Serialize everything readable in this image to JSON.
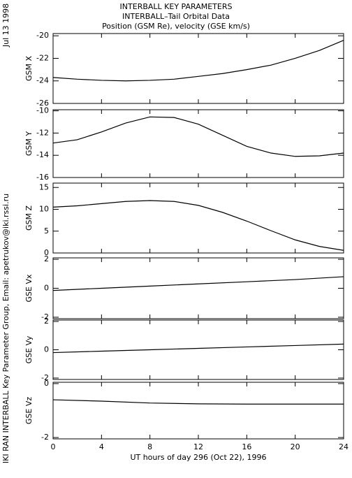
{
  "header": {
    "date": "Jul 13 1998",
    "credit": "IKI RAN INTERBALL Key Parameter Group, Email: apetrukov@iki.rssi.ru",
    "titles": [
      "INTERBALL KEY PARAMETERS",
      "INTERBALL–Tail Orbital Data",
      "Position (GSM Re), velocity (GSE km/s)"
    ]
  },
  "chart_data": [
    {
      "type": "line",
      "ylabel": "GSM X",
      "color": "#000000",
      "x": [
        0,
        2,
        4,
        6,
        8,
        10,
        12,
        14,
        16,
        18,
        20,
        22,
        24
      ],
      "values": [
        -23.7,
        -23.85,
        -23.95,
        -24.0,
        -23.95,
        -23.85,
        -23.6,
        -23.35,
        -23.0,
        -22.6,
        -22.0,
        -21.3,
        -20.4
      ],
      "xlim": [
        0,
        24
      ],
      "xticks": [
        0,
        4,
        8,
        12,
        16,
        20,
        24
      ],
      "ylim": [
        -26,
        -19.8
      ],
      "yticks": [
        -26,
        -24,
        -22,
        -20
      ]
    },
    {
      "type": "line",
      "ylabel": "GSM Y",
      "color": "#000000",
      "x": [
        0,
        2,
        4,
        6,
        8,
        10,
        12,
        14,
        16,
        18,
        20,
        22,
        24
      ],
      "values": [
        -12.9,
        -12.6,
        -11.9,
        -11.1,
        -10.55,
        -10.6,
        -11.2,
        -12.2,
        -13.2,
        -13.8,
        -14.1,
        -14.05,
        -13.8
      ],
      "xlim": [
        0,
        24
      ],
      "xticks": [
        0,
        4,
        8,
        12,
        16,
        20,
        24
      ],
      "ylim": [
        -16,
        -9.9
      ],
      "yticks": [
        -16,
        -14,
        -12,
        -10
      ]
    },
    {
      "type": "line",
      "ylabel": "GSM Z",
      "color": "#000000",
      "x": [
        0,
        2,
        4,
        6,
        8,
        10,
        12,
        14,
        16,
        18,
        20,
        22,
        24
      ],
      "values": [
        10.5,
        10.8,
        11.3,
        11.8,
        12.0,
        11.8,
        10.9,
        9.3,
        7.3,
        5.1,
        3.0,
        1.5,
        0.6
      ],
      "xlim": [
        0,
        24
      ],
      "xticks": [
        0,
        4,
        8,
        12,
        16,
        20,
        24
      ],
      "ylim": [
        0,
        16
      ],
      "yticks": [
        0,
        5,
        10,
        15
      ]
    },
    {
      "type": "line",
      "ylabel": "GSE Vx",
      "color": "#000000",
      "x": [
        0,
        4,
        8,
        12,
        16,
        20,
        24
      ],
      "values": [
        -0.15,
        0.0,
        0.15,
        0.3,
        0.45,
        0.6,
        0.8
      ],
      "xlim": [
        0,
        24
      ],
      "xticks": [
        0,
        4,
        8,
        12,
        16,
        20,
        24
      ],
      "ylim": [
        -2.1,
        2.1
      ],
      "yticks": [
        -2,
        0,
        2
      ]
    },
    {
      "type": "line",
      "ylabel": "GSE Vy",
      "color": "#000000",
      "x": [
        0,
        4,
        8,
        12,
        16,
        20,
        24
      ],
      "values": [
        -0.2,
        -0.1,
        0.0,
        0.1,
        0.2,
        0.3,
        0.4
      ],
      "xlim": [
        0,
        24
      ],
      "xticks": [
        0,
        4,
        8,
        12,
        16,
        20,
        24
      ],
      "ylim": [
        -2.1,
        2.1
      ],
      "yticks": [
        -2,
        0,
        2
      ]
    },
    {
      "type": "line",
      "ylabel": "GSE Vz",
      "color": "#000000",
      "x": [
        0,
        4,
        8,
        12,
        16,
        20,
        24
      ],
      "values": [
        -0.6,
        -0.65,
        -0.72,
        -0.75,
        -0.76,
        -0.76,
        -0.76
      ],
      "xlim": [
        0,
        24
      ],
      "xticks": [
        0,
        4,
        8,
        12,
        16,
        20,
        24
      ],
      "ylim": [
        -2.05,
        0.05
      ],
      "yticks": [
        -2,
        0
      ],
      "xlabel": "UT hours of day 296 (Oct 22), 1996"
    }
  ]
}
